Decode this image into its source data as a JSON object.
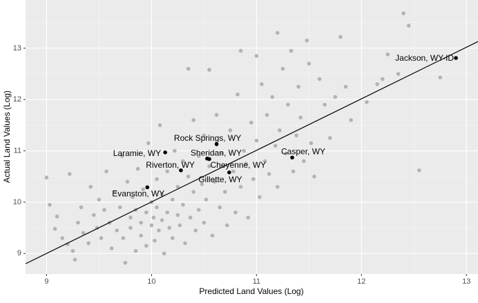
{
  "chart_data": {
    "type": "scatter",
    "x_label": "Predicted Land Values (Log)",
    "y_label": "Actual Land Values (Log)",
    "xlim": [
      8.8,
      13.11
    ],
    "ylim": [
      8.6,
      13.94
    ],
    "xticks": [
      9,
      10,
      11,
      12,
      13
    ],
    "yticks": [
      9,
      10,
      11,
      12,
      13
    ],
    "grid": true,
    "minor_grid": true,
    "series": [
      {
        "color": "#b3b3b3",
        "x": [
          9.0,
          9.03,
          9.08,
          9.1,
          9.15,
          9.2,
          9.22,
          9.25,
          9.27,
          9.3,
          9.33,
          9.35,
          9.4,
          9.42,
          9.45,
          9.48,
          9.5,
          9.52,
          9.55,
          9.57,
          9.6,
          9.62,
          9.65,
          9.67,
          9.7,
          9.72,
          9.73,
          9.75,
          9.77,
          9.8,
          9.8,
          9.82,
          9.85,
          9.85,
          9.87,
          9.9,
          9.9,
          9.92,
          9.95,
          9.95,
          9.97,
          10.0,
          10.0,
          10.02,
          10.03,
          10.05,
          10.05,
          10.07,
          10.08,
          10.1,
          10.1,
          10.12,
          10.15,
          10.15,
          10.17,
          10.2,
          10.2,
          10.22,
          10.25,
          10.25,
          10.27,
          10.3,
          10.3,
          10.32,
          10.35,
          10.35,
          10.37,
          10.4,
          10.4,
          10.42,
          10.45,
          10.45,
          10.48,
          10.5,
          10.5,
          10.52,
          10.55,
          10.55,
          10.58,
          10.6,
          10.62,
          10.65,
          10.67,
          10.7,
          10.72,
          10.75,
          10.78,
          10.8,
          10.82,
          10.85,
          10.85,
          10.88,
          10.9,
          10.92,
          10.95,
          10.97,
          11.0,
          11.0,
          11.03,
          11.05,
          11.08,
          11.1,
          11.12,
          11.15,
          11.18,
          11.2,
          11.2,
          11.22,
          11.25,
          11.28,
          11.3,
          11.33,
          11.35,
          11.38,
          11.4,
          11.42,
          11.45,
          11.48,
          11.5,
          11.52,
          11.55,
          11.6,
          11.65,
          11.7,
          11.75,
          11.8,
          11.85,
          11.9,
          12.05,
          12.15,
          12.2,
          12.25,
          12.35,
          12.4,
          12.45,
          12.55,
          12.75
        ],
        "y": [
          10.48,
          9.95,
          9.48,
          9.72,
          9.3,
          9.18,
          10.55,
          9.05,
          8.88,
          9.6,
          9.9,
          9.4,
          9.2,
          10.3,
          9.75,
          9.5,
          10.05,
          9.3,
          9.85,
          10.6,
          9.6,
          9.1,
          10.2,
          9.45,
          9.9,
          10.9,
          9.3,
          8.82,
          10.4,
          9.7,
          9.5,
          10.1,
          9.05,
          9.85,
          10.65,
          9.6,
          9.35,
          10.25,
          9.8,
          9.15,
          11.15,
          9.55,
          10.0,
          9.7,
          9.25,
          10.45,
          9.9,
          9.45,
          11.5,
          9.65,
          10.15,
          9.0,
          9.8,
          10.6,
          9.5,
          10.05,
          9.3,
          11.0,
          9.75,
          10.3,
          9.55,
          10.8,
          9.95,
          9.2,
          10.5,
          12.6,
          9.7,
          10.2,
          11.6,
          9.45,
          10.9,
          9.85,
          10.35,
          9.6,
          11.3,
          10.05,
          12.58,
          10.7,
          9.35,
          10.4,
          11.7,
          9.9,
          10.95,
          10.2,
          9.55,
          11.4,
          10.6,
          9.8,
          12.1,
          12.95,
          10.3,
          11.0,
          10.75,
          9.7,
          11.55,
          10.45,
          12.85,
          11.2,
          10.1,
          12.3,
          10.8,
          11.7,
          10.55,
          12.05,
          11.1,
          13.3,
          10.3,
          11.4,
          12.6,
          10.95,
          11.9,
          12.95,
          10.6,
          11.3,
          12.25,
          11.65,
          10.8,
          13.15,
          12.7,
          11.15,
          10.5,
          12.4,
          11.9,
          11.25,
          12.05,
          13.22,
          12.25,
          11.6,
          11.95,
          12.3,
          12.4,
          12.88,
          12.5,
          13.68,
          13.44,
          10.62,
          12.43
        ]
      }
    ],
    "labeled_points": {
      "color": "#000000",
      "labels": [
        "Jackson, WY-ID",
        "Casper, WY",
        "Rock Springs, WY",
        "Sheridan, WY",
        "Laramie, WY",
        "Riverton, WY",
        "Cheyenne, WY",
        "Gillette, WY",
        "Evanston, WY"
      ],
      "x": [
        12.9,
        11.34,
        10.62,
        10.55,
        10.13,
        10.28,
        10.74,
        10.53,
        9.96
      ],
      "y": [
        12.81,
        10.87,
        11.13,
        10.84,
        10.97,
        10.62,
        10.58,
        10.85,
        10.29
      ]
    },
    "fit_line": {
      "x": [
        8.8,
        13.11
      ],
      "y": [
        8.8,
        13.13
      ]
    }
  }
}
